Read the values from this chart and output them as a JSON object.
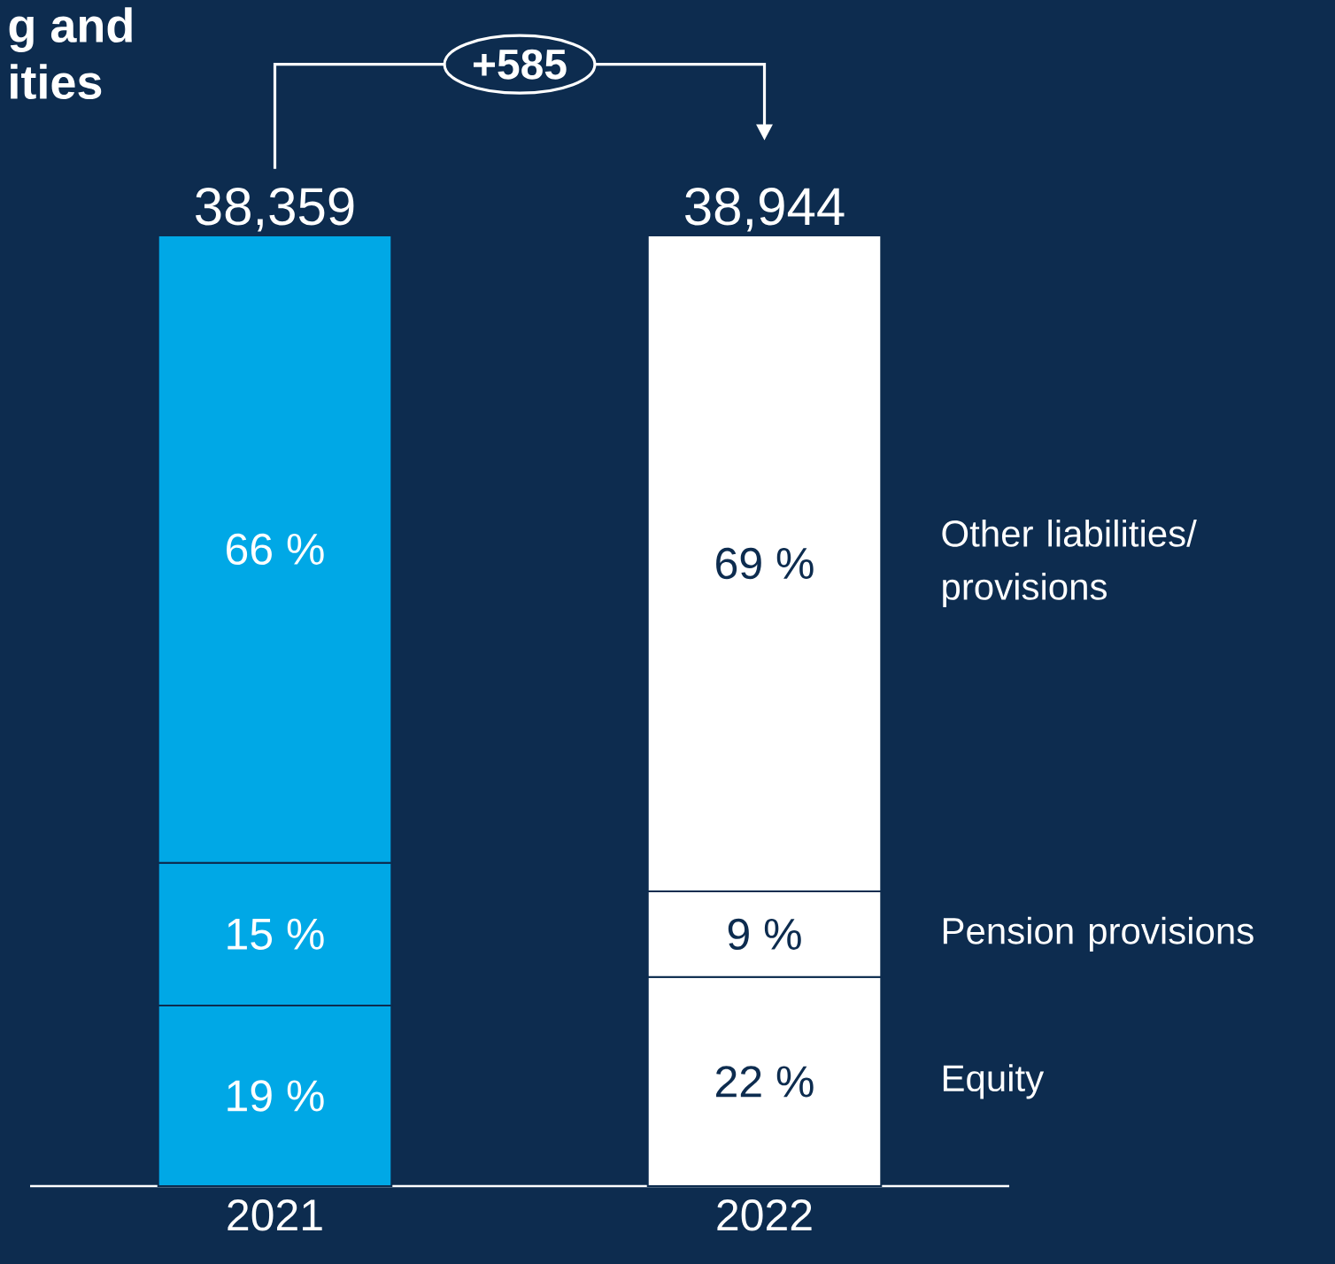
{
  "chart_data": {
    "type": "bar",
    "stacked": true,
    "annotations": [
      "g and",
      "ities",
      "+585",
      {
        "text": "38,359",
        "x": "2021",
        "y": 100
      },
      {
        "text": "38,944",
        "x": "2022",
        "y": 100
      }
    ],
    "categories": [
      "2021",
      "2022"
    ],
    "series": [
      {
        "name": "Equity",
        "colors": [
          "#00a8e6",
          "#ffffff"
        ],
        "values": [
          19,
          22
        ],
        "value_labels": [
          "19 %",
          "22 %"
        ]
      },
      {
        "name": "Pension provisions",
        "colors": [
          "#00a8e6",
          "#ffffff"
        ],
        "values": [
          15,
          9
        ],
        "value_labels": [
          "15 %",
          "9 %"
        ]
      },
      {
        "name": "Other liabilities/ provisions",
        "colors": [
          "#00a8e6",
          "#ffffff"
        ],
        "values": [
          66,
          69
        ],
        "value_labels": [
          "66 %",
          "69 %"
        ]
      }
    ]
  }
}
